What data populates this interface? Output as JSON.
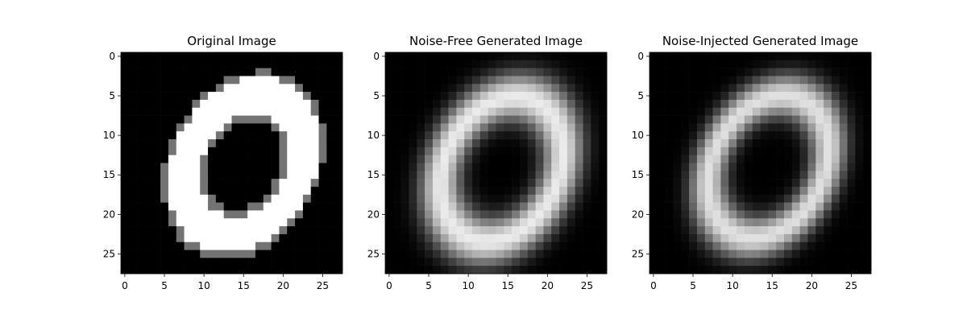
{
  "chart_data": [
    {
      "type": "heatmap",
      "title": "Original Image",
      "colormap": "gray",
      "grid": false,
      "xlim": [
        -0.5,
        27.5
      ],
      "ylim": [
        27.5,
        -0.5
      ],
      "xticks": [
        0,
        5,
        10,
        15,
        20,
        25
      ],
      "yticks": [
        0,
        5,
        10,
        15,
        20,
        25
      ],
      "shape": {
        "kind": "binary-ring",
        "cx": 15.0,
        "cy": 13.8,
        "rx": 7.0,
        "ry": 9.2,
        "angle_deg": 28,
        "thickness": 1.9,
        "max_value": 1.0
      }
    },
    {
      "type": "heatmap",
      "title": "Noise-Free Generated Image",
      "colormap": "gray",
      "grid": false,
      "xlim": [
        -0.5,
        27.5
      ],
      "ylim": [
        27.5,
        -0.5
      ],
      "xticks": [
        0,
        5,
        10,
        15,
        20,
        25
      ],
      "yticks": [
        0,
        5,
        10,
        15,
        20,
        25
      ],
      "shape": {
        "kind": "smooth-ring",
        "cx": 14.2,
        "cy": 14.3,
        "rx": 7.2,
        "ry": 9.6,
        "angle_deg": 27,
        "thickness": 1.7,
        "max_value": 0.92
      }
    },
    {
      "type": "heatmap",
      "title": "Noise-Injected Generated Image",
      "colormap": "gray",
      "grid": false,
      "xlim": [
        -0.5,
        27.5
      ],
      "ylim": [
        27.5,
        -0.5
      ],
      "xticks": [
        0,
        5,
        10,
        15,
        20,
        25
      ],
      "yticks": [
        0,
        5,
        10,
        15,
        20,
        25
      ],
      "shape": {
        "kind": "smooth-ring",
        "cx": 14.5,
        "cy": 14.0,
        "rx": 7.0,
        "ry": 9.5,
        "angle_deg": 28,
        "thickness": 1.5,
        "max_value": 0.88
      }
    }
  ]
}
